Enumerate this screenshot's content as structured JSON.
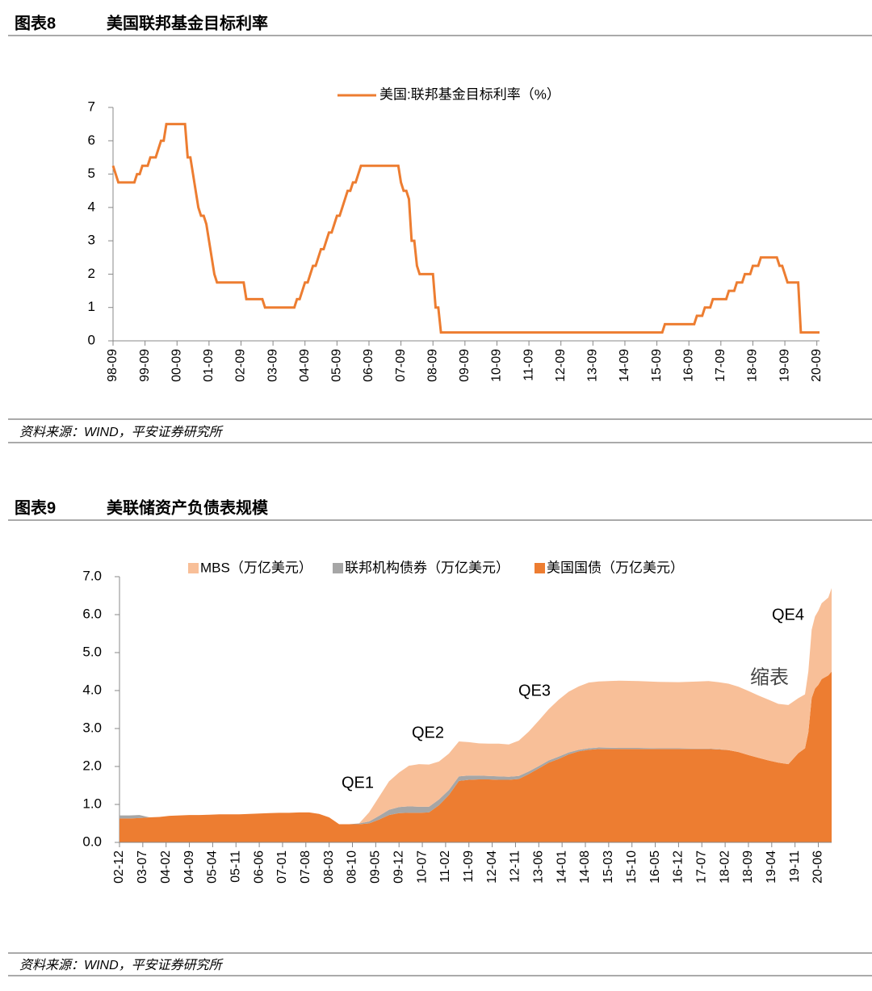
{
  "figures": [
    {
      "label": "图表8",
      "source": "资料来源：WIND，平安证券研究所"
    },
    {
      "label": "图表9",
      "source": "资料来源：WIND，平安证券研究所"
    }
  ],
  "chart_data": [
    {
      "type": "line",
      "title": "美国联邦基金目标利率",
      "legend": "top",
      "x": [
        "98-09",
        "98-10",
        "98-11",
        "99-05",
        "99-06",
        "99-07",
        "99-08",
        "99-10",
        "99-11",
        "00-01",
        "00-02",
        "00-03",
        "00-04",
        "00-05",
        "00-12",
        "01-01",
        "01-02",
        "01-03",
        "01-04",
        "01-05",
        "01-06",
        "01-07",
        "01-08",
        "01-09",
        "01-10",
        "01-11",
        "01-12",
        "02-10",
        "02-11",
        "03-05",
        "03-06",
        "04-05",
        "04-06",
        "04-07",
        "04-08",
        "04-09",
        "04-10",
        "04-11",
        "04-12",
        "05-01",
        "05-02",
        "05-03",
        "05-04",
        "05-05",
        "05-06",
        "05-07",
        "05-08",
        "05-09",
        "05-10",
        "05-11",
        "05-12",
        "06-01",
        "06-02",
        "06-03",
        "06-04",
        "06-05",
        "06-06",
        "07-08",
        "07-09",
        "07-10",
        "07-11",
        "07-12",
        "08-01",
        "08-02",
        "08-03",
        "08-04",
        "08-09",
        "08-10",
        "08-11",
        "08-12",
        "15-11",
        "15-12",
        "16-11",
        "16-12",
        "17-02",
        "17-03",
        "17-05",
        "17-06",
        "17-11",
        "17-12",
        "18-02",
        "18-03",
        "18-05",
        "18-06",
        "18-08",
        "18-09",
        "18-11",
        "18-12",
        "19-06",
        "19-07",
        "19-08",
        "19-09",
        "19-10",
        "20-02",
        "20-03",
        "20-10"
      ],
      "series": [
        {
          "name": "美国:联邦基金目标利率（%）",
          "color": "#ED7D31",
          "values": [
            5.25,
            5.0,
            4.75,
            4.75,
            5.0,
            5.0,
            5.25,
            5.25,
            5.5,
            5.5,
            5.75,
            6.0,
            6.0,
            6.5,
            6.5,
            5.5,
            5.5,
            5.0,
            4.5,
            4.0,
            3.75,
            3.75,
            3.5,
            3.0,
            2.5,
            2.0,
            1.75,
            1.75,
            1.25,
            1.25,
            1.0,
            1.0,
            1.25,
            1.25,
            1.5,
            1.75,
            1.75,
            2.0,
            2.25,
            2.25,
            2.5,
            2.75,
            2.75,
            3.0,
            3.25,
            3.25,
            3.5,
            3.75,
            3.75,
            4.0,
            4.25,
            4.5,
            4.5,
            4.75,
            4.75,
            5.0,
            5.25,
            5.25,
            4.75,
            4.5,
            4.5,
            4.25,
            3.0,
            3.0,
            2.25,
            2.0,
            2.0,
            1.0,
            1.0,
            0.25,
            0.25,
            0.5,
            0.5,
            0.75,
            0.75,
            1.0,
            1.0,
            1.25,
            1.25,
            1.5,
            1.5,
            1.75,
            1.75,
            2.0,
            2.0,
            2.25,
            2.25,
            2.5,
            2.5,
            2.25,
            2.25,
            2.0,
            1.75,
            1.75,
            0.25,
            0.25
          ]
        }
      ],
      "xlim": [
        "98-09",
        "20-10"
      ],
      "xticks": [
        "98-09",
        "99-09",
        "00-09",
        "01-09",
        "02-09",
        "03-09",
        "04-09",
        "05-09",
        "06-09",
        "07-09",
        "08-09",
        "09-09",
        "10-09",
        "11-09",
        "12-09",
        "13-09",
        "14-09",
        "15-09",
        "16-09",
        "17-09",
        "18-09",
        "19-09",
        "20-09"
      ],
      "ylim": [
        0,
        7
      ],
      "yticks": [
        0,
        1,
        2,
        3,
        4,
        5,
        6,
        7
      ]
    },
    {
      "type": "stacked_area",
      "title": "美联储资产负债表规模",
      "legend": "top",
      "x": [
        "02-12",
        "03-03",
        "03-06",
        "03-09",
        "03-12",
        "04-03",
        "04-06",
        "04-09",
        "04-12",
        "05-03",
        "05-06",
        "05-09",
        "05-12",
        "06-03",
        "06-06",
        "06-09",
        "06-12",
        "07-03",
        "07-06",
        "07-09",
        "07-12",
        "08-03",
        "08-06",
        "08-09",
        "08-12",
        "09-03",
        "09-06",
        "09-09",
        "09-12",
        "10-03",
        "10-06",
        "10-09",
        "10-12",
        "11-03",
        "11-06",
        "11-09",
        "11-12",
        "12-03",
        "12-06",
        "12-09",
        "12-12",
        "13-03",
        "13-06",
        "13-09",
        "13-12",
        "14-03",
        "14-06",
        "14-09",
        "14-12",
        "15-06",
        "15-12",
        "16-06",
        "16-12",
        "17-06",
        "17-09",
        "17-12",
        "18-03",
        "18-06",
        "18-09",
        "18-12",
        "19-03",
        "19-06",
        "19-09",
        "19-12",
        "20-02",
        "20-03",
        "20-04",
        "20-05",
        "20-06",
        "20-07",
        "20-09",
        "20-10"
      ],
      "series": [
        {
          "name": "MBS（万亿美元）",
          "color": "#F8BF98",
          "values": [
            0,
            0,
            0,
            0,
            0,
            0,
            0,
            0,
            0,
            0,
            0,
            0,
            0,
            0,
            0,
            0,
            0,
            0,
            0,
            0,
            0,
            0,
            0,
            0,
            0,
            0.24,
            0.5,
            0.75,
            0.91,
            1.07,
            1.12,
            1.11,
            1.0,
            0.96,
            0.92,
            0.88,
            0.85,
            0.85,
            0.86,
            0.85,
            0.93,
            1.05,
            1.2,
            1.35,
            1.5,
            1.6,
            1.67,
            1.73,
            1.74,
            1.77,
            1.76,
            1.75,
            1.74,
            1.77,
            1.78,
            1.76,
            1.75,
            1.72,
            1.69,
            1.64,
            1.6,
            1.55,
            1.56,
            1.45,
            1.42,
            1.6,
            1.8,
            1.9,
            1.95,
            2.0,
            2.05,
            2.2
          ]
        },
        {
          "name": "联邦机构债券（万亿美元）",
          "color": "#A6A6A6",
          "values": [
            0.08,
            0.08,
            0.08,
            0,
            0,
            0,
            0,
            0,
            0,
            0,
            0,
            0,
            0,
            0,
            0,
            0,
            0,
            0,
            0,
            0,
            0,
            0,
            0,
            0,
            0.02,
            0.05,
            0.1,
            0.14,
            0.16,
            0.17,
            0.16,
            0.15,
            0.15,
            0.13,
            0.12,
            0.11,
            0.1,
            0.09,
            0.09,
            0.08,
            0.08,
            0.07,
            0.06,
            0.06,
            0.06,
            0.05,
            0.04,
            0.04,
            0.04,
            0.03,
            0.03,
            0.02,
            0.02,
            0.01,
            0.01,
            0.01,
            0,
            0,
            0,
            0,
            0,
            0,
            0,
            0,
            0,
            0,
            0,
            0,
            0,
            0,
            0,
            0
          ]
        },
        {
          "name": "美国国债（万亿美元）",
          "color": "#ED7D31",
          "values": [
            0.63,
            0.63,
            0.64,
            0.66,
            0.67,
            0.7,
            0.71,
            0.72,
            0.72,
            0.73,
            0.74,
            0.74,
            0.74,
            0.75,
            0.76,
            0.77,
            0.78,
            0.78,
            0.79,
            0.79,
            0.75,
            0.66,
            0.48,
            0.48,
            0.48,
            0.5,
            0.6,
            0.72,
            0.77,
            0.78,
            0.78,
            0.79,
            0.98,
            1.25,
            1.62,
            1.65,
            1.66,
            1.66,
            1.65,
            1.65,
            1.67,
            1.8,
            1.95,
            2.1,
            2.2,
            2.32,
            2.4,
            2.44,
            2.46,
            2.46,
            2.46,
            2.46,
            2.46,
            2.46,
            2.46,
            2.45,
            2.43,
            2.38,
            2.3,
            2.23,
            2.16,
            2.1,
            2.06,
            2.35,
            2.48,
            2.9,
            3.8,
            4.05,
            4.15,
            4.3,
            4.4,
            4.5
          ]
        }
      ],
      "xlim": [
        "02-12",
        "20-10"
      ],
      "xticks": [
        "02-12",
        "03-07",
        "04-02",
        "04-09",
        "05-04",
        "05-11",
        "06-06",
        "07-01",
        "07-08",
        "08-03",
        "08-10",
        "09-05",
        "09-12",
        "10-07",
        "11-02",
        "11-09",
        "12-04",
        "12-11",
        "13-06",
        "14-01",
        "14-08",
        "15-03",
        "15-10",
        "16-05",
        "16-12",
        "17-07",
        "18-02",
        "18-09",
        "19-04",
        "19-11",
        "20-06"
      ],
      "ylim": [
        0,
        7
      ],
      "yticks": [
        {
          "value": 0,
          "label": "0.0"
        },
        {
          "value": 1,
          "label": "1.0"
        },
        {
          "value": 2,
          "label": "2.0"
        },
        {
          "value": 3,
          "label": "3.0"
        },
        {
          "value": 4,
          "label": "4.0"
        },
        {
          "value": 5,
          "label": "5.0"
        },
        {
          "value": 6,
          "label": "6.0"
        },
        {
          "value": 7,
          "label": "7.0"
        }
      ],
      "annotations": [
        "QE1",
        "QE2",
        "QE3",
        "QE4",
        "缩表"
      ]
    }
  ]
}
